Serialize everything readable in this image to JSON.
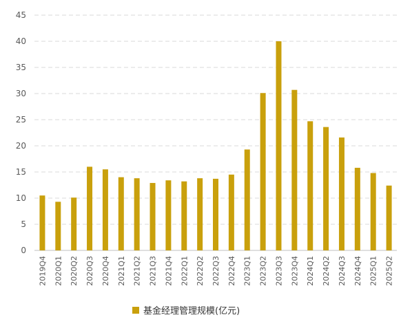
{
  "chart_data": {
    "type": "bar",
    "categories": [
      "2019Q4",
      "2020Q1",
      "2020Q2",
      "2020Q3",
      "2020Q4",
      "2021Q1",
      "2021Q2",
      "2021Q3",
      "2021Q4",
      "2022Q1",
      "2022Q2",
      "2022Q3",
      "2022Q4",
      "2023Q1",
      "2023Q2",
      "2023Q3",
      "2023Q4",
      "2024Q1",
      "2024Q2",
      "2024Q3",
      "2024Q4",
      "2025Q1",
      "2025Q2"
    ],
    "series": [
      {
        "name": "基金经理管理规模(亿元)",
        "values": [
          10.5,
          9.3,
          10.1,
          16.0,
          15.5,
          14.0,
          13.8,
          12.9,
          13.4,
          13.2,
          13.8,
          13.7,
          14.5,
          19.3,
          30.1,
          40.0,
          30.7,
          24.7,
          23.6,
          21.6,
          15.8,
          14.8,
          12.4
        ]
      }
    ],
    "yticks": [
      "0",
      "5",
      "10",
      "15",
      "20",
      "25",
      "30",
      "35",
      "40",
      "45"
    ],
    "ylim": [
      0,
      45
    ],
    "grid": true,
    "legend_position": "bottom",
    "colors": {
      "bar": "#C9A00C",
      "grid": "#D9D9D9",
      "axis": "#BFBFBF"
    }
  }
}
